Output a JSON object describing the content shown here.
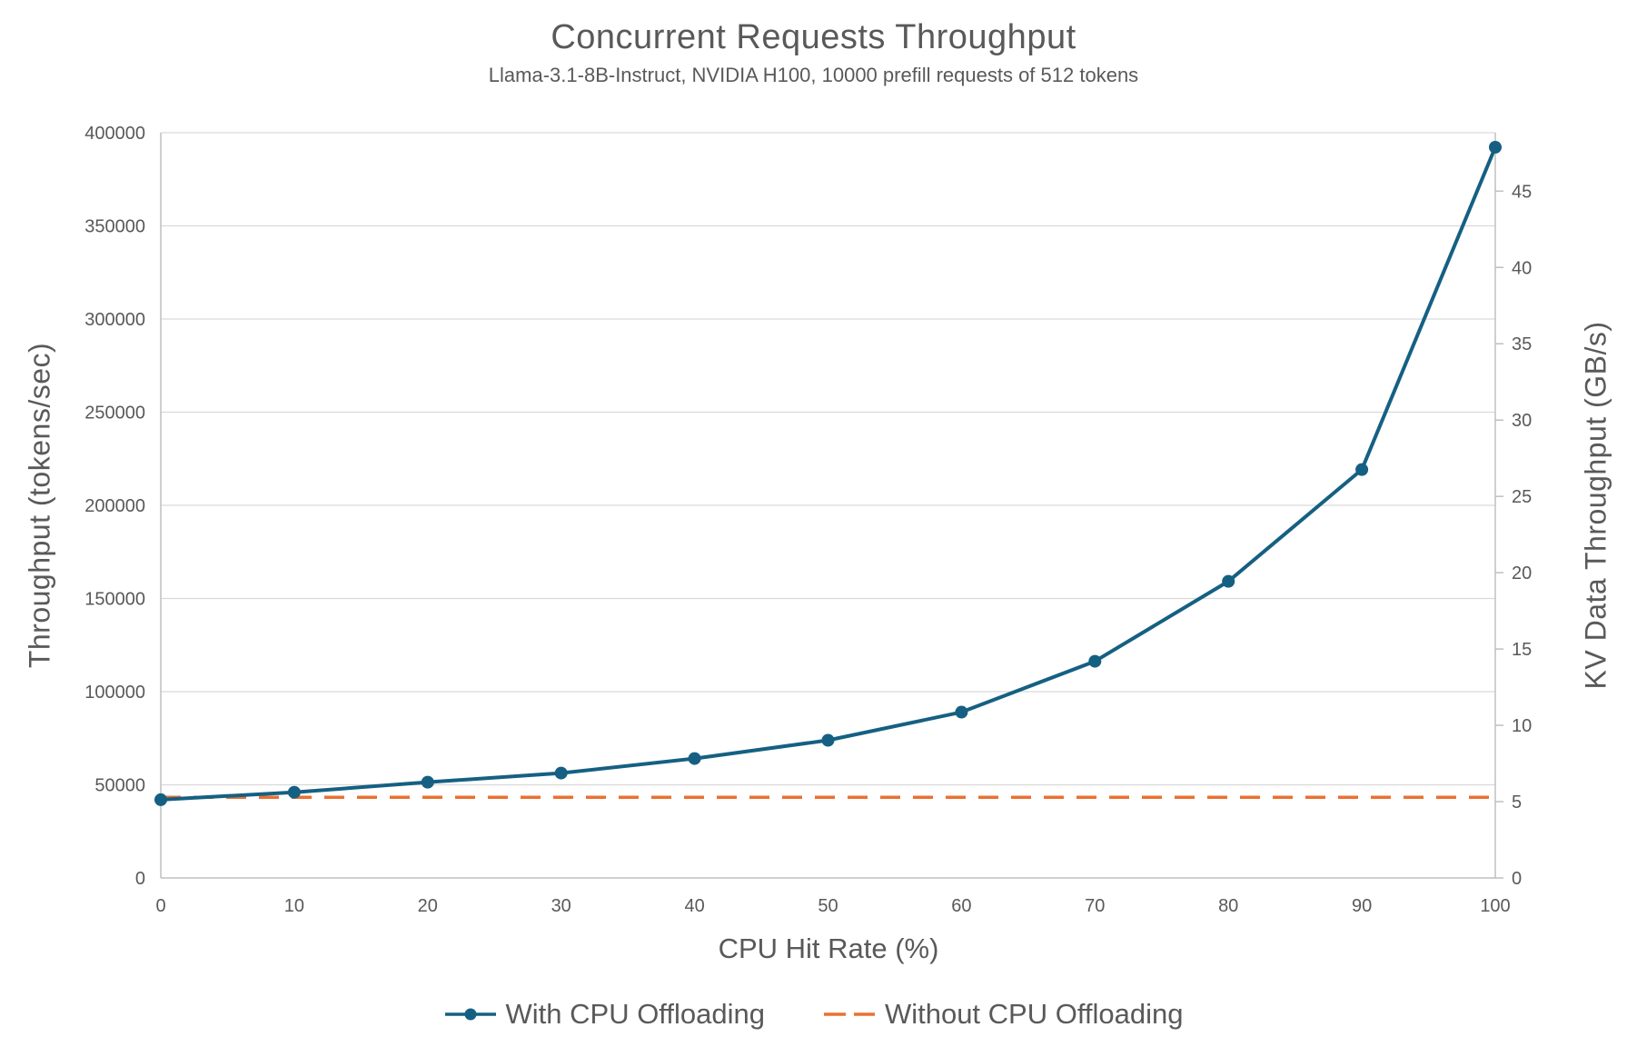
{
  "chart_data": {
    "type": "line",
    "title": "Concurrent Requests Throughput",
    "subtitle": "Llama-3.1-8B-Instruct, NVIDIA H100, 10000 prefill requests of 512 tokens",
    "xlabel": "CPU Hit Rate (%)",
    "ylabel_left": "Throughput (tokens/sec)",
    "ylabel_right": "KV Data Throughput (GB/s)",
    "x": [
      0,
      10,
      20,
      30,
      40,
      50,
      60,
      70,
      80,
      90,
      100
    ],
    "series": [
      {
        "name": "With CPU Offloading",
        "color": "#156082",
        "line_style": "solid",
        "marker": "circle",
        "axis": "left",
        "values": [
          42000,
          46000,
          51400,
          56300,
          64100,
          73900,
          89000,
          116300,
          159200,
          219200,
          392200
        ]
      },
      {
        "name": "Without CPU Offloading",
        "color": "#E97132",
        "line_style": "dashed",
        "marker": "none",
        "axis": "left",
        "values": [
          43300,
          43300,
          43300,
          43300,
          43300,
          43300,
          43300,
          43300,
          43300,
          43300,
          43300
        ]
      }
    ],
    "left_axis": {
      "min": 0,
      "max": 400000,
      "step": 50000
    },
    "right_axis": {
      "min": 0,
      "max": 48.828125,
      "tick_step": 5,
      "last_tick": 45
    },
    "x_ticks": [
      0,
      10,
      20,
      30,
      40,
      50,
      60,
      70,
      80,
      90,
      100
    ],
    "x_max": 100,
    "grid": "horizontal",
    "legend_position": "bottom"
  },
  "legend": {
    "items": [
      {
        "label": "With CPU Offloading"
      },
      {
        "label": "Without CPU Offloading"
      }
    ]
  },
  "colors": {
    "series_blue": "#156082",
    "series_orange": "#E97132",
    "text": "#595959",
    "gridline": "#D9D9D9",
    "axis_line": "#BFBFBF",
    "background": "#FFFFFF"
  }
}
